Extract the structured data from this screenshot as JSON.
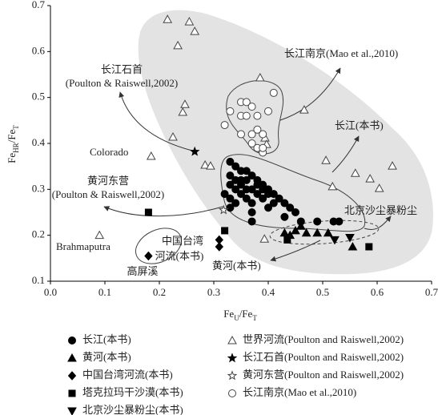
{
  "chart_data": {
    "type": "scatter",
    "x_label": [
      "Fe",
      "U",
      "/Fe",
      "T"
    ],
    "y_label": [
      "Fe",
      "HR",
      "/Fe",
      "T"
    ],
    "xlim": [
      0,
      0.7
    ],
    "ylim": [
      0.1,
      0.7
    ],
    "xticks": [
      {
        "value": 0,
        "label": "0.0"
      },
      0.1,
      0.2,
      0.3,
      0.4,
      0.5,
      0.6,
      0.7
    ],
    "yticks": [
      0.1,
      0.2,
      0.3,
      0.4,
      0.5,
      0.6,
      0.7
    ],
    "annotations": [
      "长江南京(Mao et al.,2010)",
      "长江石首",
      "(Poulton & Raiswell,2002)",
      "Colorado",
      "长江(本书)",
      "黄河东营",
      "(Poulton & Raiswell,2002)",
      "北京沙尘暴粉尘",
      "Brahmaputra",
      "中国台湾",
      "河流(本书)",
      "高屏溪",
      "黄河(本书)"
    ],
    "series": [
      {
        "name": "长江(本书)",
        "color": "#000000",
        "marker": "circle",
        "filled": true,
        "x": [
          0.33,
          0.34,
          0.33,
          0.35,
          0.34,
          0.33,
          0.35,
          0.36,
          0.37,
          0.38,
          0.38,
          0.39,
          0.4,
          0.4,
          0.41,
          0.42,
          0.41,
          0.39,
          0.37,
          0.36,
          0.35,
          0.34,
          0.36,
          0.37,
          0.38,
          0.39,
          0.36,
          0.33,
          0.32,
          0.34,
          0.33,
          0.37,
          0.37,
          0.43,
          0.44,
          0.4,
          0.43,
          0.49,
          0.52,
          0.53,
          0.46,
          0.45,
          0.35
        ],
        "values": [
          0.36,
          0.35,
          0.33,
          0.34,
          0.32,
          0.31,
          0.31,
          0.32,
          0.33,
          0.32,
          0.31,
          0.3,
          0.3,
          0.29,
          0.29,
          0.28,
          0.27,
          0.28,
          0.3,
          0.3,
          0.29,
          0.3,
          0.28,
          0.27,
          0.29,
          0.31,
          0.34,
          0.28,
          0.29,
          0.27,
          0.26,
          0.25,
          0.23,
          0.27,
          0.26,
          0.26,
          0.24,
          0.23,
          0.23,
          0.23,
          0.23,
          0.25,
          0.32
        ]
      },
      {
        "name": "黄河(本书)",
        "color": "#000000",
        "marker": "triangle",
        "filled": true,
        "x": [
          0.44,
          0.45,
          0.47,
          0.46,
          0.49,
          0.51,
          0.555,
          0.43
        ],
        "values": [
          0.2,
          0.21,
          0.205,
          0.22,
          0.205,
          0.205,
          0.175,
          0.205
        ]
      },
      {
        "name": "中国台湾河流(本书)",
        "color": "#000000",
        "marker": "diamond",
        "filled": true,
        "x": [
          0.18,
          0.31,
          0.31
        ],
        "values": [
          0.155,
          0.19,
          0.175
        ]
      },
      {
        "name": "塔克拉玛干沙漠(本书)",
        "color": "#000000",
        "marker": "square",
        "filled": true,
        "x": [
          0.18,
          0.32,
          0.435,
          0.585
        ],
        "values": [
          0.25,
          0.21,
          0.19,
          0.175
        ]
      },
      {
        "name": "北京沙尘暴粉尘(本书)",
        "color": "#000000",
        "marker": "triangle-down",
        "filled": true,
        "x": [
          0.522,
          0.55
        ],
        "values": [
          0.19,
          0.195
        ]
      },
      {
        "name": "世界河流(Poulton and Raiswell,2002)",
        "color": "#444444",
        "marker": "triangle",
        "filled": false,
        "x": [
          0.215,
          0.255,
          0.265,
          0.234,
          0.385,
          0.247,
          0.243,
          0.466,
          0.225,
          0.185,
          0.506,
          0.284,
          0.294,
          0.628,
          0.587,
          0.56,
          0.518,
          0.604,
          0.09,
          0.393,
          0.394,
          0.397
        ],
        "values": [
          0.67,
          0.665,
          0.644,
          0.613,
          0.543,
          0.485,
          0.468,
          0.473,
          0.414,
          0.372,
          0.363,
          0.353,
          0.351,
          0.351,
          0.323,
          0.335,
          0.306,
          0.302,
          0.2,
          0.192,
          0.412,
          0.398
        ]
      },
      {
        "name": "长江石首(Poulton and Raiswell,2002)",
        "color": "#000000",
        "marker": "star",
        "filled": true,
        "x": [
          0.265
        ],
        "values": [
          0.382
        ]
      },
      {
        "name": "黄河东营(Poulton and Raiswell,2002)",
        "color": "#444444",
        "marker": "star",
        "filled": false,
        "x": [
          0.318
        ],
        "values": [
          0.255
        ]
      },
      {
        "name": "长江南京(Mao et al.,2010)",
        "color": "#444444",
        "marker": "circle",
        "filled": false,
        "x": [
          0.33,
          0.35,
          0.36,
          0.37,
          0.35,
          0.36,
          0.38,
          0.32,
          0.35,
          0.37,
          0.38,
          0.39,
          0.37,
          0.38,
          0.39,
          0.41,
          0.4,
          0.39
        ],
        "values": [
          0.47,
          0.49,
          0.49,
          0.48,
          0.46,
          0.46,
          0.46,
          0.44,
          0.42,
          0.42,
          0.43,
          0.42,
          0.4,
          0.39,
          0.38,
          0.51,
          0.47,
          0.39
        ]
      }
    ]
  }
}
